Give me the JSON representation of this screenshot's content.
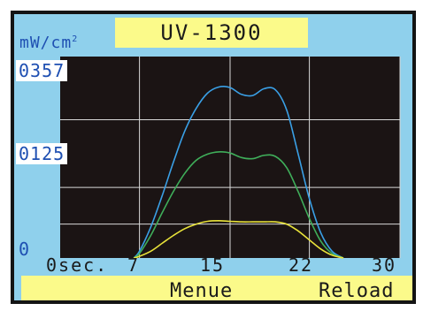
{
  "header": {
    "title": "UV-1300"
  },
  "chart_data": {
    "type": "line",
    "title": "UV-1300",
    "ylabel": "mW/cm",
    "ylabel_superscript": "2",
    "xlabel": "sec.",
    "xlim": [
      0,
      30
    ],
    "ylim": [
      0,
      357
    ],
    "grid": true,
    "y_tick_labels": [
      {
        "value": 0,
        "label": "0"
      },
      {
        "value": 125,
        "label": "0125"
      },
      {
        "value": 357,
        "label": "0357"
      }
    ],
    "x_tick_labels": [
      {
        "value": 0,
        "label": "0sec."
      },
      {
        "value": 7,
        "label": "7"
      },
      {
        "value": 15,
        "label": "15"
      },
      {
        "value": 22,
        "label": "22"
      },
      {
        "value": 30,
        "label": "30"
      }
    ],
    "x_gridlines": [
      7,
      15,
      22,
      30
    ],
    "y_gridlines": [
      60,
      125,
      245
    ],
    "series": [
      {
        "color": "#3aa0e6",
        "x": [
          6.5,
          7.0,
          8.0,
          9.0,
          10.0,
          11.0,
          12.0,
          13.0,
          14.0,
          15.0,
          16.0,
          17.0,
          18.0,
          19.0,
          20.0,
          21.0,
          22.0,
          23.0,
          24.0,
          25.0
        ],
        "y": [
          0,
          12,
          55,
          110,
          170,
          225,
          265,
          292,
          303,
          302,
          290,
          288,
          300,
          298,
          262,
          185,
          105,
          45,
          12,
          0
        ]
      },
      {
        "color": "#3fae5a",
        "x": [
          6.5,
          7.0,
          8.0,
          9.0,
          10.0,
          11.0,
          12.0,
          13.0,
          14.0,
          15.0,
          16.0,
          17.0,
          18.0,
          19.0,
          20.0,
          21.0,
          22.0,
          23.0,
          24.0,
          25.0
        ],
        "y": [
          0,
          8,
          40,
          80,
          118,
          150,
          173,
          184,
          188,
          186,
          178,
          176,
          182,
          180,
          160,
          118,
          70,
          30,
          8,
          0
        ]
      },
      {
        "color": "#e8e23a",
        "x": [
          6.5,
          7.0,
          8.0,
          9.0,
          10.0,
          11.0,
          12.0,
          13.0,
          14.0,
          15.0,
          16.0,
          17.0,
          18.0,
          19.0,
          20.0,
          21.0,
          22.0,
          23.0,
          24.0,
          25.0
        ],
        "y": [
          0,
          3,
          12,
          26,
          40,
          52,
          60,
          65,
          66,
          65,
          64,
          64,
          64,
          64,
          60,
          48,
          32,
          16,
          5,
          0
        ]
      }
    ]
  },
  "softkeys": {
    "menu": "Menue",
    "reload": "Reload"
  },
  "colors": {
    "frame": "#8fd0ec",
    "plot_bg": "#1b1414",
    "grid": "#d8d8d8",
    "bar": "#fbfa8a",
    "label_blue": "#1e4fb2"
  }
}
